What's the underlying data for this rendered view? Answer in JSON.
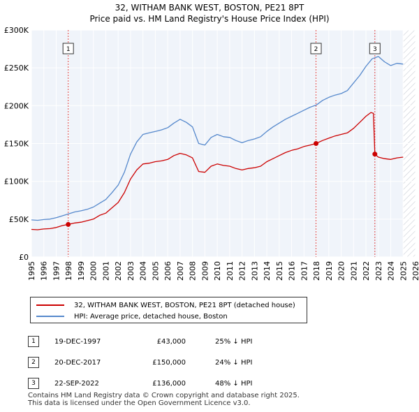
{
  "title_line1": "32, WITHAM BANK WEST, BOSTON, PE21 8PT",
  "title_line2": "Price paid vs. HM Land Registry's House Price Index (HPI)",
  "chart_data": {
    "type": "line",
    "title": "Price paid vs. HM Land Registry's House Price Index (HPI)",
    "xlabel": "",
    "ylabel": "",
    "xlim": [
      1995,
      2026
    ],
    "ylim": [
      0,
      300000
    ],
    "y_ticks": [
      0,
      50000,
      100000,
      150000,
      200000,
      250000,
      300000
    ],
    "y_tick_labels": [
      "£0",
      "£50K",
      "£100K",
      "£150K",
      "£200K",
      "£250K",
      "£300K"
    ],
    "x_ticks": [
      1995,
      1996,
      1997,
      1998,
      1999,
      2000,
      2001,
      2002,
      2003,
      2004,
      2005,
      2006,
      2007,
      2008,
      2009,
      2010,
      2011,
      2012,
      2013,
      2014,
      2015,
      2016,
      2017,
      2018,
      2019,
      2020,
      2021,
      2022,
      2023,
      2024,
      2025,
      2026
    ],
    "grid": true,
    "legend_position": "below",
    "forecast_start": 2025.0,
    "series": [
      {
        "name": "32, WITHAM BANK WEST, BOSTON, PE21 8PT (detached house)",
        "color": "#cc0000",
        "x": [
          1995.0,
          1995.5,
          1996.0,
          1996.5,
          1997.0,
          1997.5,
          1997.97,
          1998.5,
          1999.0,
          1999.5,
          2000.0,
          2000.5,
          2001.0,
          2001.5,
          2002.0,
          2002.5,
          2003.0,
          2003.5,
          2004.0,
          2004.5,
          2005.0,
          2005.5,
          2006.0,
          2006.5,
          2007.0,
          2007.5,
          2008.0,
          2008.5,
          2009.0,
          2009.5,
          2010.0,
          2010.5,
          2011.0,
          2011.5,
          2012.0,
          2012.5,
          2013.0,
          2013.5,
          2014.0,
          2014.5,
          2015.0,
          2015.5,
          2016.0,
          2016.5,
          2017.0,
          2017.5,
          2017.97,
          2018.5,
          2019.0,
          2019.5,
          2020.0,
          2020.5,
          2021.0,
          2021.5,
          2022.0,
          2022.4,
          2022.6,
          2022.72,
          2023.0,
          2023.5,
          2024.0,
          2024.5,
          2025.0
        ],
        "values": [
          36500,
          36000,
          37000,
          37500,
          39000,
          41500,
          43000,
          45000,
          46000,
          48000,
          50000,
          55000,
          58000,
          65000,
          72000,
          85000,
          103000,
          115000,
          123000,
          124000,
          126000,
          127000,
          129000,
          134000,
          137000,
          135000,
          131000,
          113000,
          112000,
          120000,
          123000,
          121000,
          120000,
          117000,
          115000,
          117000,
          118000,
          120000,
          126000,
          130000,
          134000,
          138000,
          141000,
          143000,
          146000,
          148000,
          150000,
          154000,
          157000,
          160000,
          162000,
          164000,
          170000,
          178000,
          186000,
          191000,
          190000,
          136000,
          132000,
          130000,
          129000,
          131000,
          132000
        ]
      },
      {
        "name": "HPI: Average price, detached house, Boston",
        "color": "#5588cc",
        "x": [
          1995.0,
          1995.5,
          1996.0,
          1996.5,
          1997.0,
          1997.5,
          1998.0,
          1998.5,
          1999.0,
          1999.5,
          2000.0,
          2000.5,
          2001.0,
          2001.5,
          2002.0,
          2002.5,
          2003.0,
          2003.5,
          2004.0,
          2004.5,
          2005.0,
          2005.5,
          2006.0,
          2006.5,
          2007.0,
          2007.5,
          2008.0,
          2008.5,
          2009.0,
          2009.5,
          2010.0,
          2010.5,
          2011.0,
          2011.5,
          2012.0,
          2012.5,
          2013.0,
          2013.5,
          2014.0,
          2014.5,
          2015.0,
          2015.5,
          2016.0,
          2016.5,
          2017.0,
          2017.5,
          2018.0,
          2018.5,
          2019.0,
          2019.5,
          2020.0,
          2020.5,
          2021.0,
          2021.5,
          2022.0,
          2022.5,
          2023.0,
          2023.5,
          2024.0,
          2024.5,
          2025.0
        ],
        "values": [
          49000,
          48500,
          49500,
          50000,
          52000,
          54500,
          57000,
          59500,
          61000,
          63000,
          66000,
          71000,
          76000,
          85000,
          95000,
          112000,
          136000,
          152000,
          162000,
          164000,
          166000,
          168000,
          171000,
          177000,
          182000,
          178000,
          172000,
          150000,
          148000,
          158000,
          162000,
          159000,
          158000,
          154000,
          151000,
          154000,
          156000,
          159000,
          166000,
          172000,
          177000,
          182000,
          186000,
          190000,
          194000,
          198000,
          201000,
          207000,
          211000,
          214000,
          216000,
          220000,
          230000,
          240000,
          252000,
          262000,
          265000,
          258000,
          253000,
          256000,
          255000
        ]
      }
    ],
    "markers": [
      {
        "label": "1",
        "x": 1997.97,
        "value": 43000
      },
      {
        "label": "2",
        "x": 2017.97,
        "value": 150000
      },
      {
        "label": "3",
        "x": 2022.72,
        "value": 136000
      }
    ]
  },
  "legend": {
    "property_label": "32, WITHAM BANK WEST, BOSTON, PE21 8PT (detached house)",
    "hpi_label": "HPI: Average price, detached house, Boston"
  },
  "sales": [
    {
      "num": "1",
      "date": "19-DEC-1997",
      "price": "£43,000",
      "hpi": "25% ↓ HPI"
    },
    {
      "num": "2",
      "date": "20-DEC-2017",
      "price": "£150,000",
      "hpi": "24% ↓ HPI"
    },
    {
      "num": "3",
      "date": "22-SEP-2022",
      "price": "£136,000",
      "hpi": "48% ↓ HPI"
    }
  ],
  "footer_line1": "Contains HM Land Registry data © Crown copyright and database right 2025.",
  "footer_line2": "This data is licensed under the Open Government Licence v3.0."
}
